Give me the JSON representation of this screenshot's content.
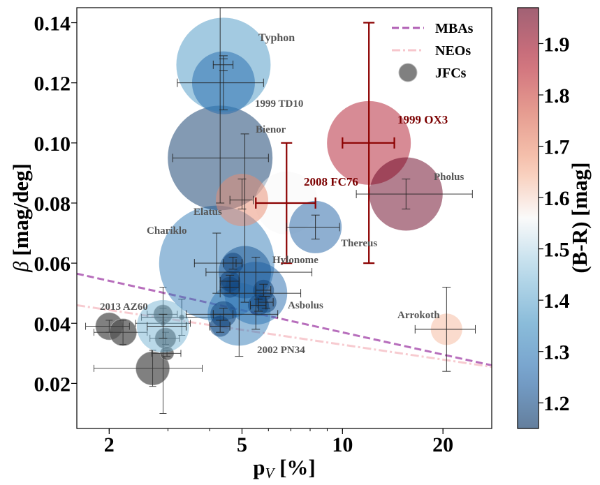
{
  "chart_data": {
    "type": "scatter",
    "xlabel_main": "p",
    "xlabel_sub": "V",
    "xlabel_unit": " [%]",
    "ylabel_symbol": "β",
    "ylabel_unit": " [mag/deg]",
    "colorbar_label": "(B-R) [mag]",
    "x_scale": "log",
    "xlim": [
      1.6,
      28
    ],
    "ylim": [
      0.005,
      0.145
    ],
    "x_ticks": [
      {
        "value": 2,
        "label": "2"
      },
      {
        "value": 5,
        "label": "5"
      },
      {
        "value": 10,
        "label": "10"
      },
      {
        "value": 20,
        "label": "20"
      }
    ],
    "y_ticks": [
      {
        "value": 0.02,
        "label": "0.02"
      },
      {
        "value": 0.04,
        "label": "0.04"
      },
      {
        "value": 0.06,
        "label": "0.06"
      },
      {
        "value": 0.08,
        "label": "0.08"
      },
      {
        "value": 0.1,
        "label": "0.10"
      },
      {
        "value": 0.12,
        "label": "0.12"
      },
      {
        "value": 0.14,
        "label": "0.14"
      }
    ],
    "colorbar": {
      "range": [
        1.15,
        1.97
      ],
      "ticks": [
        {
          "value": 1.2,
          "label": "1.2"
        },
        {
          "value": 1.3,
          "label": "1.3"
        },
        {
          "value": 1.4,
          "label": "1.4"
        },
        {
          "value": 1.5,
          "label": "1.5"
        },
        {
          "value": 1.6,
          "label": "1.6"
        },
        {
          "value": 1.7,
          "label": "1.7"
        },
        {
          "value": 1.8,
          "label": "1.8"
        },
        {
          "value": 1.9,
          "label": "1.9"
        }
      ],
      "colormap": "RdBu_r"
    },
    "legend": {
      "placement": "top-right",
      "entries": [
        {
          "label": "MBAs",
          "style": "dashed",
          "color": "#b05fb5"
        },
        {
          "label": "NEOs",
          "style": "dashdot",
          "color": "#f7c6cc"
        },
        {
          "label": "JFCs",
          "style": "marker",
          "color": "#555555"
        }
      ]
    },
    "lines": [
      {
        "name": "MBAs",
        "x": [
          1.6,
          28
        ],
        "y": [
          0.0565,
          0.026
        ],
        "color": "#b05fb5",
        "dash": "10,5"
      },
      {
        "name": "NEOs",
        "x": [
          1.6,
          28
        ],
        "y": [
          0.046,
          0.0255
        ],
        "color": "#f7c6cc",
        "dash": "12,4,3,4"
      }
    ],
    "series": [
      {
        "group": "centaur",
        "points": [
          {
            "label": "Typhon",
            "x": 4.4,
            "y": 0.126,
            "color_index": 1.36,
            "size": 9,
            "xerr": [
              0.3,
              0.3
            ],
            "yerr": [
              0.002,
              0.002
            ]
          },
          {
            "label": "1999 TD10",
            "x": 4.4,
            "y": 0.12,
            "color_index": 1.26,
            "size": 6,
            "xerr": [
              1.2,
              1.4
            ],
            "yerr": [
              0.009,
              0.009
            ]
          },
          {
            "label": "Bienor",
            "x": 4.3,
            "y": 0.095,
            "color_index": 1.16,
            "size": 10,
            "xerr": [
              1.2,
              1.7
            ],
            "yerr": [
              0.015,
              0.05
            ]
          },
          {
            "label": "Elatus",
            "x": 5.0,
            "y": 0.081,
            "color_index": 1.7,
            "size": 5,
            "xerr": [
              0.4,
              0.4
            ],
            "yerr": [
              0.003,
              0.007
            ]
          },
          {
            "label": "2008 FC76",
            "x": 6.8,
            "y": 0.08,
            "color_index": 1.56,
            "size": 6,
            "xerr": [
              1.3,
              1.5
            ],
            "yerr": [
              0.02,
              0.02
            ]
          },
          {
            "label": "1999 OX3",
            "x": 12.0,
            "y": 0.1,
            "color_index": 1.87,
            "size": 8,
            "xerr": [
              2.0,
              2.3
            ],
            "yerr": [
              0.04,
              0.04
            ]
          },
          {
            "label": "Pholus",
            "x": 15.5,
            "y": 0.083,
            "color_index": 1.97,
            "size": 7,
            "xerr": [
              4.5,
              9.0
            ],
            "yerr": [
              0.005,
              0.005
            ]
          },
          {
            "label": "Thereus",
            "x": 8.3,
            "y": 0.072,
            "color_index": 1.24,
            "size": 5,
            "xerr": [
              1.5,
              1.5
            ],
            "yerr": [
              0.004,
              0.004
            ]
          },
          {
            "label": "Chariklo",
            "x": 4.2,
            "y": 0.06,
            "color_index": 1.3,
            "size": 11,
            "xerr": [
              0.6,
              0.6
            ],
            "yerr": [
              0.01,
              0.01
            ]
          },
          {
            "label": "Hylonome",
            "x": 5.1,
            "y": 0.057,
            "color_index": 1.22,
            "size": 5,
            "xerr": [
              1.2,
              3.0
            ],
            "yerr": [
              0.01,
              0.046
            ]
          },
          {
            "label": "Asbolus",
            "x": 5.5,
            "y": 0.05,
            "color_index": 1.26,
            "size": 6,
            "xerr": [
              1.2,
              2.0
            ],
            "yerr": [
              0.012,
              0.012
            ]
          },
          {
            "label": "2002 PN34",
            "x": 4.9,
            "y": 0.043,
            "color_index": 1.3,
            "size": 6,
            "xerr": [
              1.5,
              1.5
            ],
            "yerr": [
              0.014,
              0.014
            ]
          },
          {
            "label": "2013 AZ60",
            "x": 2.9,
            "y": 0.039,
            "color_index": 1.42,
            "size": 5,
            "xerr": [
              0.3,
              0.5
            ],
            "yerr": [
              0.004,
              0.004
            ]
          },
          {
            "label": "Arrokoth",
            "x": 20.5,
            "y": 0.038,
            "color_index": 1.64,
            "size": 3,
            "xerr": [
              4.0,
              4.5
            ],
            "yerr": [
              0.014,
              0.014
            ]
          },
          {
            "label": "",
            "x": 4.7,
            "y": 0.06,
            "color_index": 1.18,
            "size": 2,
            "xerr": [
              0.3,
              0.3
            ],
            "yerr": [
              0.002,
              0.002
            ]
          },
          {
            "label": "",
            "x": 4.6,
            "y": 0.054,
            "color_index": 1.18,
            "size": 2,
            "xerr": [
              0.3,
              0.3
            ],
            "yerr": [
              0.002,
              0.002
            ]
          },
          {
            "label": "",
            "x": 4.6,
            "y": 0.052,
            "color_index": 1.18,
            "size": 2,
            "xerr": [
              0.3,
              0.3
            ],
            "yerr": [
              0.002,
              0.002
            ]
          },
          {
            "label": "",
            "x": 5.8,
            "y": 0.051,
            "color_index": 1.18,
            "size": 2,
            "xerr": [
              0.3,
              0.3
            ],
            "yerr": [
              0.002,
              0.002
            ]
          },
          {
            "label": "",
            "x": 5.9,
            "y": 0.047,
            "color_index": 1.18,
            "size": 2,
            "xerr": [
              0.3,
              0.3
            ],
            "yerr": [
              0.002,
              0.002
            ]
          },
          {
            "label": "",
            "x": 5.6,
            "y": 0.046,
            "color_index": 1.18,
            "size": 2,
            "xerr": [
              0.3,
              0.3
            ],
            "yerr": [
              0.002,
              0.002
            ]
          },
          {
            "label": "",
            "x": 4.4,
            "y": 0.043,
            "color_index": 1.18,
            "size": 2.5,
            "xerr": [
              0.3,
              0.3
            ],
            "yerr": [
              0.002,
              0.002
            ]
          },
          {
            "label": "",
            "x": 4.3,
            "y": 0.039,
            "color_index": 1.18,
            "size": 2,
            "xerr": [
              0.3,
              0.3
            ],
            "yerr": [
              0.002,
              0.002
            ]
          }
        ]
      },
      {
        "group": "jfc",
        "points": [
          {
            "x": 2.0,
            "y": 0.039,
            "size": 2.6,
            "xerr": [
              0.3,
              0.3
            ],
            "yerr": [
              0.002,
              0.002
            ]
          },
          {
            "x": 2.2,
            "y": 0.037,
            "size": 2.6,
            "xerr": [
              0.4,
              0.4
            ],
            "yerr": [
              0.004,
              0.004
            ]
          },
          {
            "x": 2.9,
            "y": 0.043,
            "size": 1.8,
            "xerr": [
              0.3,
              0.3
            ],
            "yerr": [
              0.002,
              0.002
            ]
          },
          {
            "x": 2.95,
            "y": 0.035,
            "size": 2.0,
            "xerr": [
              0.3,
              0.3
            ],
            "yerr": [
              0.002,
              0.002
            ]
          },
          {
            "x": 2.7,
            "y": 0.025,
            "size": 3.2,
            "xerr": [
              0.9,
              1.1
            ],
            "yerr": [
              0.006,
              0.006
            ]
          },
          {
            "x": 2.98,
            "y": 0.03,
            "size": 1.3,
            "xerr": [
              0.3,
              0.3
            ],
            "yerr": [
              0.001,
              0.001
            ]
          },
          {
            "x": 2.9,
            "y": 0.04,
            "size": 0.5,
            "xerr": [
              0.5,
              0.6
            ],
            "yerr": [
              0.03,
              0.012
            ]
          },
          {
            "x": 3.3,
            "y": 0.042,
            "size": 0.5,
            "xerr": [
              0.8,
              1.0
            ],
            "yerr": [
              0.006,
              0.006
            ]
          }
        ]
      }
    ]
  }
}
